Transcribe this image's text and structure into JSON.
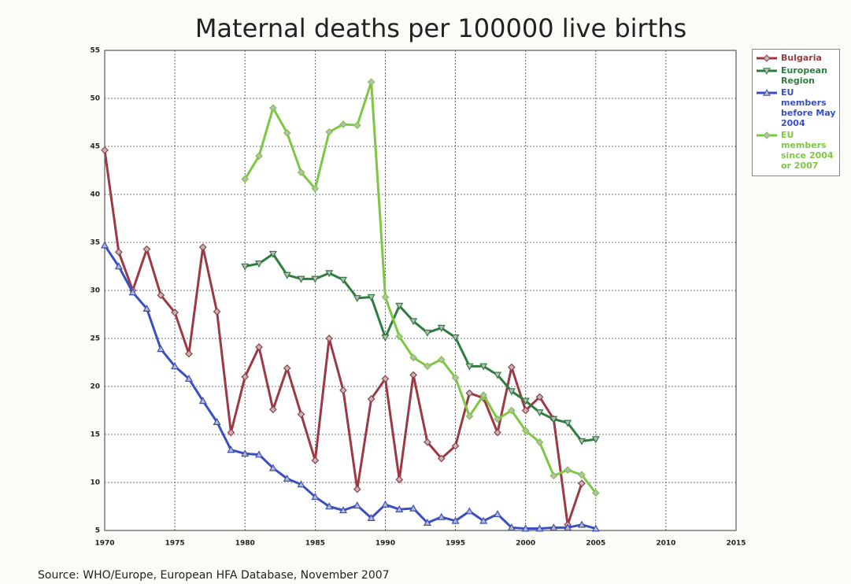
{
  "chart_data": {
    "type": "line",
    "title": "Maternal deaths per 100000 live births",
    "source": "Source: WHO/Europe, European HFA Database, November 2007",
    "x": [
      1970,
      1971,
      1972,
      1973,
      1974,
      1975,
      1976,
      1977,
      1978,
      1979,
      1980,
      1981,
      1982,
      1983,
      1984,
      1985,
      1986,
      1987,
      1988,
      1989,
      1990,
      1991,
      1992,
      1993,
      1994,
      1995,
      1996,
      1997,
      1998,
      1999,
      2000,
      2001,
      2002,
      2003,
      2004,
      2005
    ],
    "xlim": [
      1970,
      2015
    ],
    "xticks": [
      1970,
      1975,
      1980,
      1985,
      1990,
      1995,
      2000,
      2005,
      2010,
      2015
    ],
    "ylim": [
      5,
      55
    ],
    "yticks": [
      5,
      10,
      15,
      20,
      25,
      30,
      35,
      40,
      45,
      50,
      55
    ],
    "grid": true,
    "series": [
      {
        "name": "Bulgaria",
        "color": "#9b3a44",
        "marker": "diamond",
        "values": [
          44.6,
          34,
          30,
          34.3,
          29.5,
          27.7,
          23.4,
          34.5,
          27.8,
          15.2,
          21,
          24.1,
          17.6,
          21.9,
          17.1,
          12.3,
          25,
          19.6,
          9.3,
          18.7,
          20.8,
          10.3,
          21.2,
          14.2,
          12.5,
          13.8,
          19.3,
          18.8,
          15.2,
          22,
          17.5,
          18.9,
          16.6,
          5.6,
          9.9,
          null
        ]
      },
      {
        "name": "European Region",
        "color": "#2e7d3e",
        "marker": "triangle-down",
        "values": [
          null,
          null,
          null,
          null,
          null,
          null,
          null,
          null,
          null,
          null,
          32.5,
          32.8,
          33.8,
          31.6,
          31.2,
          31.2,
          31.8,
          31.1,
          29.2,
          29.3,
          25.1,
          28.4,
          26.8,
          25.6,
          26.1,
          25.1,
          22.1,
          22.1,
          21.2,
          19.5,
          18.5,
          17.3,
          16.6,
          16.2,
          14.3,
          14.5
        ]
      },
      {
        "name": "EU members before May 2004",
        "color": "#3a4fc0",
        "marker": "triangle-up",
        "values": [
          34.7,
          32.5,
          29.8,
          28.1,
          23.9,
          22.1,
          20.8,
          18.5,
          16.3,
          13.4,
          13,
          12.9,
          11.5,
          10.4,
          9.8,
          8.5,
          7.5,
          7.1,
          7.6,
          6.3,
          7.7,
          7.2,
          7.3,
          5.8,
          6.4,
          6,
          7,
          6,
          6.7,
          5.3,
          5.2,
          5.2,
          5.3,
          5.3,
          5.6,
          5.2
        ]
      },
      {
        "name": "EU members since 2004 or 2007",
        "color": "#7dc742",
        "marker": "diamond",
        "values": [
          null,
          null,
          null,
          null,
          null,
          null,
          null,
          null,
          null,
          null,
          41.6,
          44,
          49,
          46.4,
          42.3,
          40.6,
          46.5,
          47.3,
          47.2,
          51.7,
          29.3,
          25.2,
          23,
          22.1,
          22.8,
          20.9,
          16.9,
          19.1,
          16.6,
          17.5,
          15.4,
          14.2,
          10.7,
          11.3,
          10.8,
          8.9
        ]
      }
    ]
  }
}
